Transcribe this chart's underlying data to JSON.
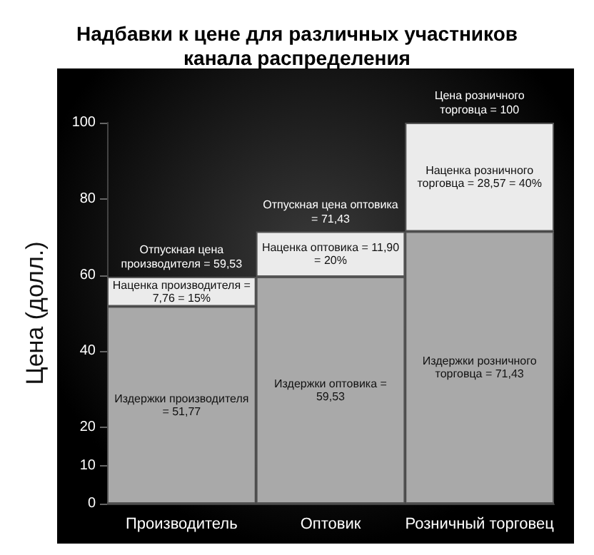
{
  "chart_data": {
    "type": "bar",
    "title": "Надбавки к цене для различных участников канала распределения",
    "ylabel": "Цена (долл.)",
    "categories": [
      "Производитель",
      "Оптовик",
      "Розничный торговец"
    ],
    "stacked": true,
    "series": [
      {
        "color": "#a9a9a9",
        "values": [
          51.77,
          59.53,
          71.43
        ],
        "value_labels": [
          "Издержки производителя = 51,77",
          "Издержки оптовика = 59,53",
          "Издержки розничного торговца = 71,43"
        ]
      },
      {
        "color": "#ebebeb",
        "values": [
          7.76,
          11.9,
          28.57
        ],
        "value_labels": [
          "Наценка производителя = 7,76 = 15%",
          "Наценка оптовика = 11,90 = 20%",
          "Наценка розничного торговца = 28,57 = 40%"
        ]
      }
    ],
    "annotations": [
      {
        "text": "Отпускная цена производителя = 59,53",
        "x": "Производитель",
        "y": 59.53
      },
      {
        "text": "Отпускная цена оптовика = 71,43",
        "x": "Оптовик",
        "y": 71.43
      },
      {
        "text": "Цена розничного торговца = 100",
        "x": "Розничный торговец",
        "y": 100
      }
    ],
    "ylim": [
      0,
      100
    ],
    "yticks": [
      0,
      10,
      20,
      40,
      60,
      80,
      100
    ],
    "grid": false
  }
}
